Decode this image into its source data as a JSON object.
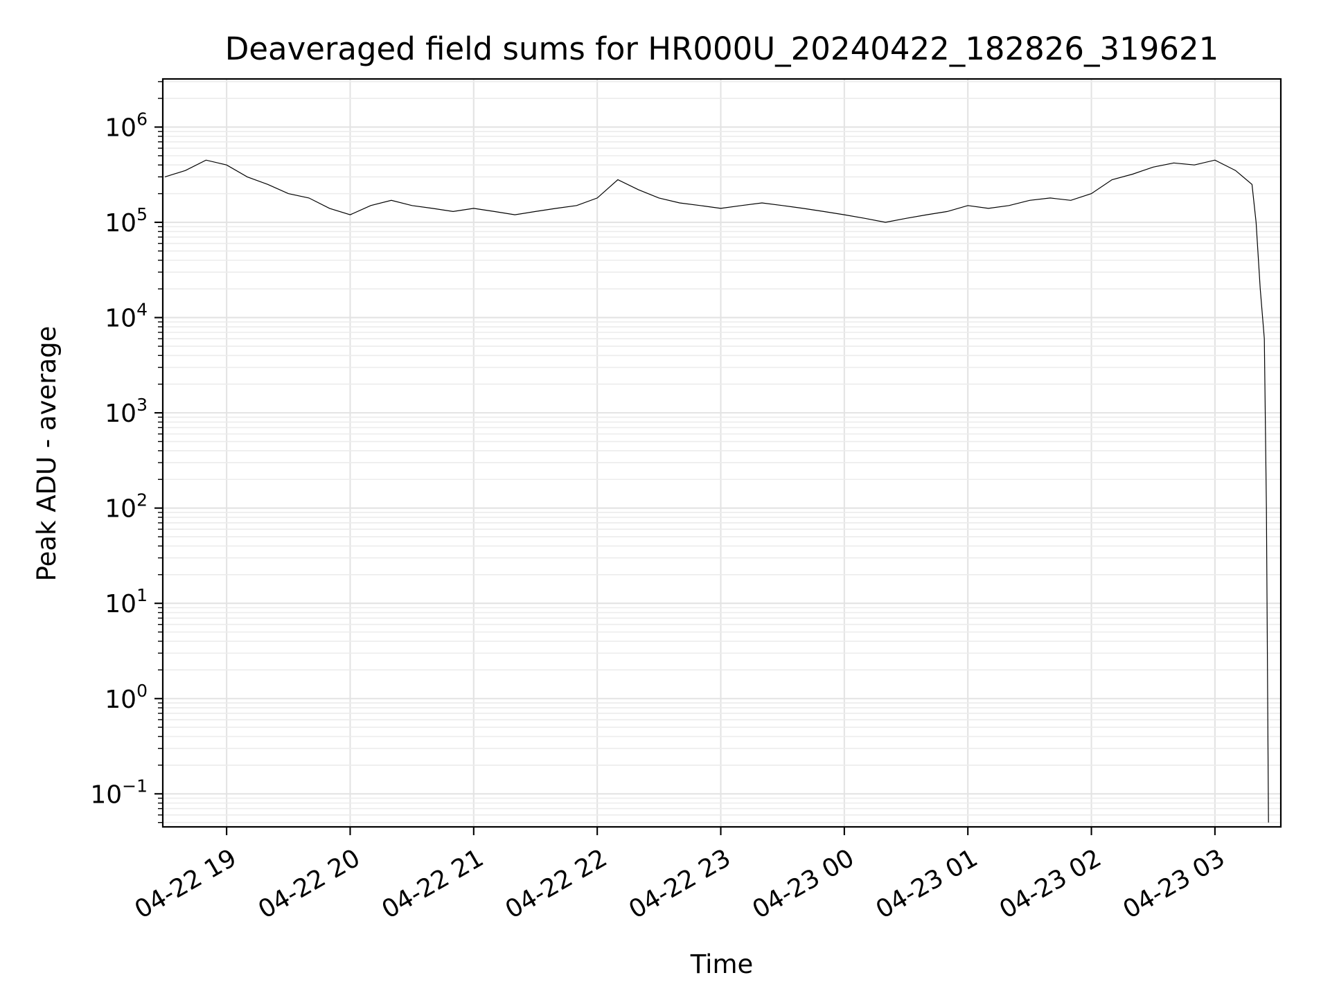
{
  "chart_data": {
    "type": "line",
    "title": "Deaveraged field sums for HR000U_20240422_182826_319621",
    "xlabel": "Time",
    "ylabel": "Peak ADU - average",
    "x_ticks": [
      "04-22 19",
      "04-22 20",
      "04-22 21",
      "04-22 22",
      "04-22 23",
      "04-23 00",
      "04-23 01",
      "04-23 02",
      "04-23 03"
    ],
    "y_ticks": [
      {
        "base": "10",
        "exp": "−1"
      },
      {
        "base": "10",
        "exp": "0"
      },
      {
        "base": "10",
        "exp": "1"
      },
      {
        "base": "10",
        "exp": "2"
      },
      {
        "base": "10",
        "exp": "3"
      },
      {
        "base": "10",
        "exp": "4"
      },
      {
        "base": "10",
        "exp": "5"
      },
      {
        "base": "10",
        "exp": "6"
      }
    ],
    "xlim": [
      "2024-04-22 18:29",
      "2024-04-23 03:32"
    ],
    "ylim": [
      0.045,
      3200000
    ],
    "yscale": "log",
    "grid": true,
    "color": "#000000",
    "series": [
      {
        "x": [
          "2024-04-22 18:30",
          "2024-04-22 18:40",
          "2024-04-22 18:50",
          "2024-04-22 19:00",
          "2024-04-22 19:10",
          "2024-04-22 19:20",
          "2024-04-22 19:30",
          "2024-04-22 19:40",
          "2024-04-22 19:50",
          "2024-04-22 20:00",
          "2024-04-22 20:10",
          "2024-04-22 20:20",
          "2024-04-22 20:30",
          "2024-04-22 20:40",
          "2024-04-22 20:50",
          "2024-04-22 21:00",
          "2024-04-22 21:10",
          "2024-04-22 21:20",
          "2024-04-22 21:30",
          "2024-04-22 21:40",
          "2024-04-22 21:50",
          "2024-04-22 22:00",
          "2024-04-22 22:10",
          "2024-04-22 22:20",
          "2024-04-22 22:30",
          "2024-04-22 22:40",
          "2024-04-22 22:50",
          "2024-04-22 23:00",
          "2024-04-22 23:10",
          "2024-04-22 23:20",
          "2024-04-22 23:30",
          "2024-04-22 23:40",
          "2024-04-22 23:50",
          "2024-04-23 00:00",
          "2024-04-23 00:10",
          "2024-04-23 00:20",
          "2024-04-23 00:30",
          "2024-04-23 00:40",
          "2024-04-23 00:50",
          "2024-04-23 01:00",
          "2024-04-23 01:10",
          "2024-04-23 01:20",
          "2024-04-23 01:30",
          "2024-04-23 01:40",
          "2024-04-23 01:50",
          "2024-04-23 02:00",
          "2024-04-23 02:10",
          "2024-04-23 02:20",
          "2024-04-23 02:30",
          "2024-04-23 02:40",
          "2024-04-23 02:50",
          "2024-04-23 03:00",
          "2024-04-23 03:10",
          "2024-04-23 03:18",
          "2024-04-23 03:20",
          "2024-04-23 03:22",
          "2024-04-23 03:24",
          "2024-04-23 03:25",
          "2024-04-23 03:26"
        ],
        "y": [
          300000,
          350000,
          450000,
          400000,
          300000,
          250000,
          200000,
          180000,
          140000,
          120000,
          150000,
          170000,
          150000,
          140000,
          130000,
          140000,
          130000,
          120000,
          130000,
          140000,
          150000,
          180000,
          280000,
          220000,
          180000,
          160000,
          150000,
          140000,
          150000,
          160000,
          150000,
          140000,
          130000,
          120000,
          110000,
          100000,
          110000,
          120000,
          130000,
          150000,
          140000,
          150000,
          170000,
          180000,
          170000,
          200000,
          280000,
          320000,
          380000,
          420000,
          400000,
          450000,
          350000,
          250000,
          100000,
          20000,
          6000,
          100,
          0.05
        ]
      }
    ]
  }
}
